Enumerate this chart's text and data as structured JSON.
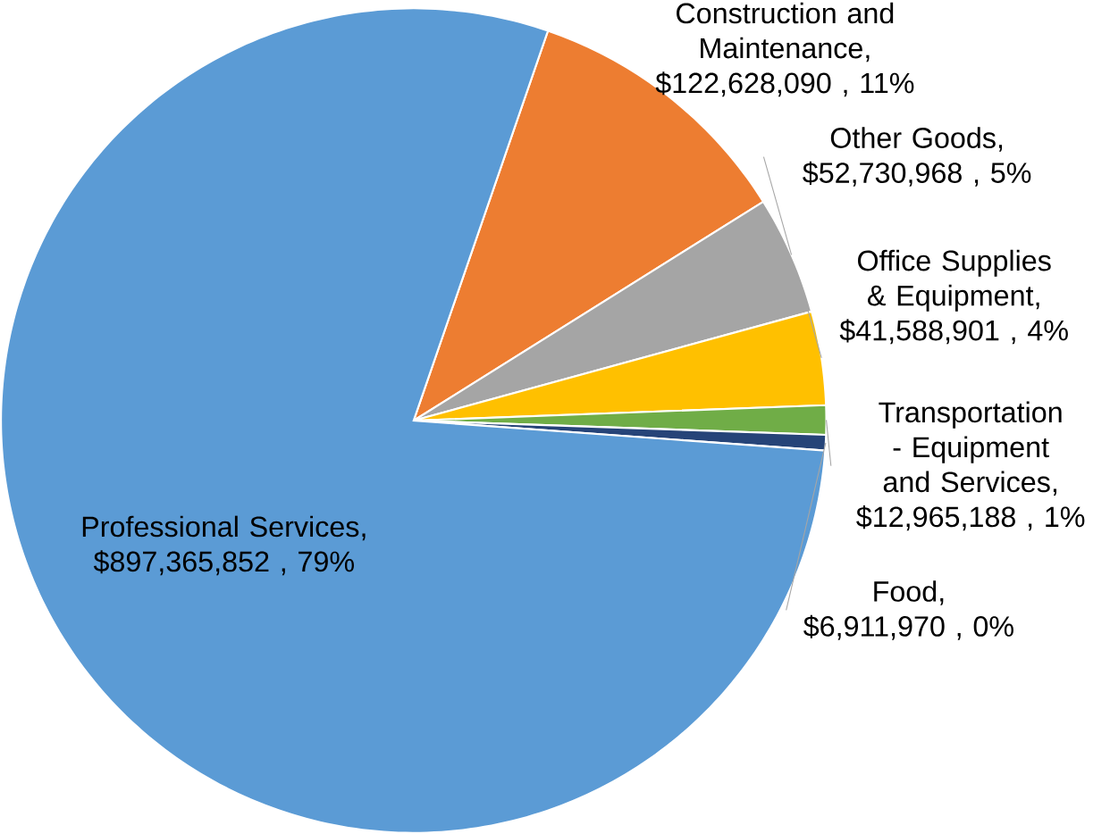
{
  "chart_data": {
    "type": "pie",
    "categories": [
      "Construction and Maintenance",
      "Other Goods",
      "Office Supplies & Equipment",
      "Transportation - Equipment and Services",
      "Food",
      "Professional Services"
    ],
    "values": [
      122628090,
      52730968,
      41588901,
      12965188,
      6911970,
      897365852
    ],
    "value_labels": [
      ", $122,628,090 , 11%",
      ", $52,730,968 , 5%",
      ", $41,588,901 , 4%",
      ", $12,965,188 , 1%",
      ", $6,911,970 , 0%",
      ", $897,365,852 , 79%"
    ],
    "colors": [
      "#ed7d31",
      "#a5a5a5",
      "#ffc000",
      "#70ad47",
      "#264478",
      "#5b9bd5"
    ]
  }
}
